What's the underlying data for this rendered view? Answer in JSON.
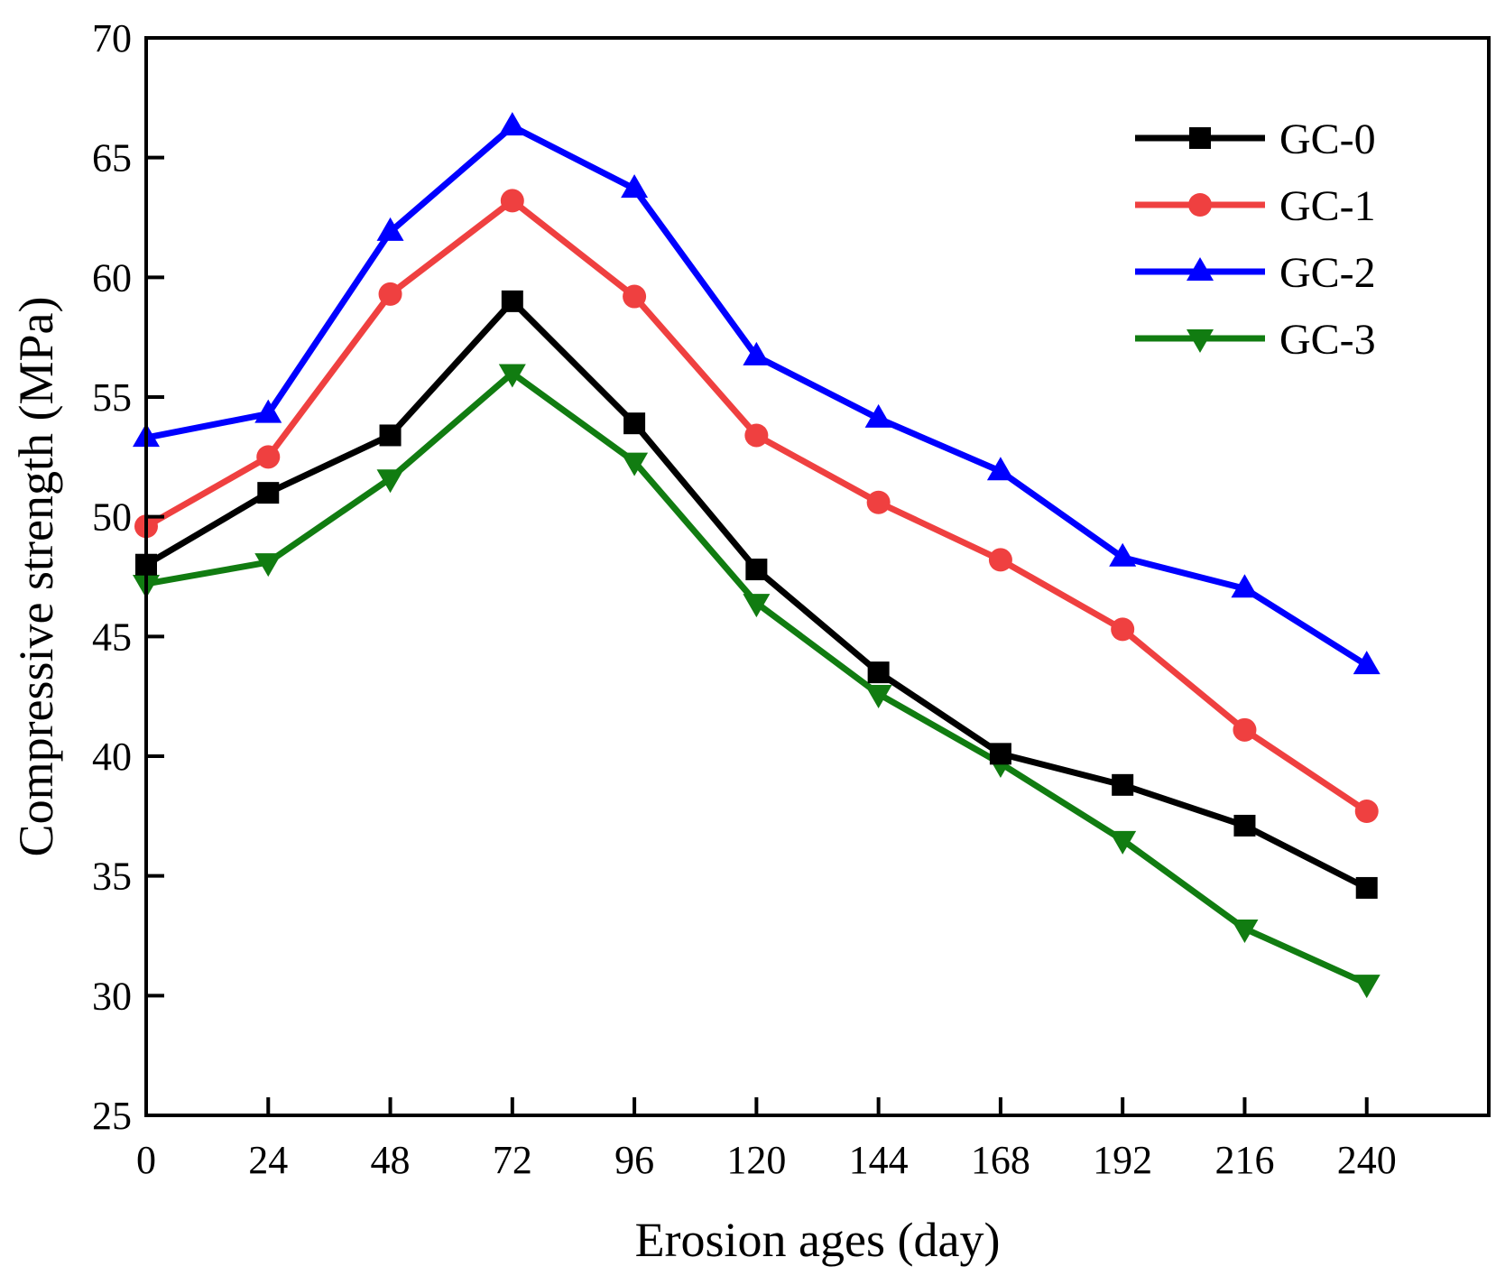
{
  "chart_data": {
    "type": "line",
    "title": "",
    "xlabel": "Erosion ages (day)",
    "ylabel": "Compressive strength (MPa)",
    "xlim": [
      0,
      264
    ],
    "ylim": [
      25,
      70
    ],
    "xticks": [
      0,
      24,
      48,
      72,
      96,
      120,
      144,
      168,
      192,
      216,
      240
    ],
    "yticks": [
      25,
      30,
      35,
      40,
      45,
      50,
      55,
      60,
      65,
      70
    ],
    "grid": false,
    "legend_position": "top-right",
    "x": [
      0,
      24,
      48,
      72,
      96,
      120,
      144,
      168,
      192,
      216,
      240
    ],
    "series": [
      {
        "name": "GC-0",
        "color": "#000000",
        "marker": "square",
        "values": [
          48.0,
          51.0,
          53.4,
          59.0,
          53.9,
          47.8,
          43.5,
          40.1,
          38.8,
          37.1,
          34.5
        ]
      },
      {
        "name": "GC-1",
        "color": "#ef4040",
        "marker": "circle",
        "values": [
          49.6,
          52.5,
          59.3,
          63.2,
          59.2,
          53.4,
          50.6,
          48.2,
          45.3,
          41.1,
          37.7
        ]
      },
      {
        "name": "GC-2",
        "color": "#0000ff",
        "marker": "triangle-up",
        "values": [
          53.3,
          54.3,
          61.9,
          66.3,
          63.7,
          56.7,
          54.1,
          51.9,
          48.3,
          47.0,
          43.8
        ]
      },
      {
        "name": "GC-3",
        "color": "#117c11",
        "marker": "triangle-down",
        "values": [
          47.2,
          48.1,
          51.6,
          56.0,
          52.3,
          46.4,
          42.6,
          39.7,
          36.5,
          32.8,
          30.5
        ]
      }
    ]
  }
}
